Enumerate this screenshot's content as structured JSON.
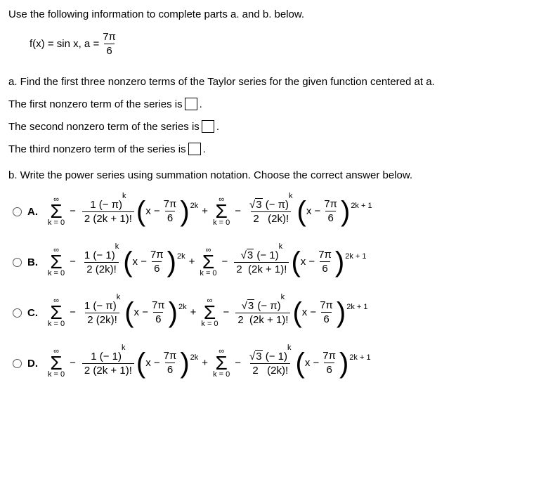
{
  "intro": "Use the following information to complete parts a. and b. below.",
  "formula": {
    "lhs": "f(x) = sin x,  a =",
    "frac_num": "7π",
    "frac_den": "6"
  },
  "part_a": {
    "label": "a. Find the first three nonzero terms of the Taylor series for the given function centered at a.",
    "line1": "The first nonzero term of the series is ",
    "period1": ".",
    "line2": "The second nonzero term of the series is ",
    "period2": ".",
    "line3": "The third nonzero term of the series is ",
    "period3": "."
  },
  "part_b": {
    "label": "b. Write the power series using summation notation. Choose the correct answer below."
  },
  "common": {
    "inf": "∞",
    "k0": "k = 0",
    "sigma": "Σ",
    "x_minus": "x −",
    "seven_pi": "7π",
    "six": "6",
    "two": "2",
    "plus": "+",
    "minus": "−",
    "sqrt": "√",
    "three": "3",
    "exp2k": "2k",
    "exp2k1": "2k + 1"
  },
  "options": {
    "A": {
      "label": "A.",
      "t1_num_pre": "1 (− π)",
      "t1_num_exp": "k",
      "t1_den": "2 (2k + 1)!",
      "t2_num_sign": "(− π)",
      "t2_num_exp": "k",
      "t2_den": "(2k)!"
    },
    "B": {
      "label": "B.",
      "t1_num_pre": "1 (− 1)",
      "t1_num_exp": "k",
      "t1_den": "2 (2k)!",
      "t2_num_sign": "(− 1)",
      "t2_num_exp": "k",
      "t2_den": "(2k + 1)!"
    },
    "C": {
      "label": "C.",
      "t1_num_pre": "1 (− π)",
      "t1_num_exp": "k",
      "t1_den": "2 (2k)!",
      "t2_num_sign": "(− π)",
      "t2_num_exp": "k",
      "t2_den": "(2k + 1)!"
    },
    "D": {
      "label": "D.",
      "t1_num_pre": "1 (− 1)",
      "t1_num_exp": "k",
      "t1_den": "2 (2k + 1)!",
      "t2_num_sign": "(− 1)",
      "t2_num_exp": "k",
      "t2_den": "(2k)!"
    }
  }
}
